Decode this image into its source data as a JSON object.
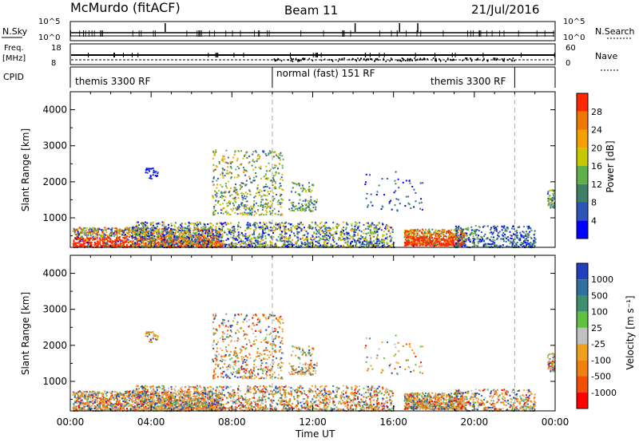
{
  "header": {
    "station": "McMurdo (fitACF)",
    "beam": "Beam 11",
    "date": "21/Jul/2016"
  },
  "noise_panel": {
    "left_label": "N.Sky",
    "right_label": "N.Search",
    "left_ticks": [
      "10^5",
      "10^0"
    ],
    "right_ticks": [
      "10^5",
      "10^0"
    ]
  },
  "freq_panel": {
    "left_label_line1": "Freq.",
    "left_label_line2": "[MHz]",
    "right_label": "Nave",
    "left_ticks": [
      "18",
      "8"
    ],
    "right_ticks": [
      "60",
      "0"
    ]
  },
  "cpid_panel": {
    "label": "CPID",
    "segments": [
      {
        "name": "themis 3300 RF",
        "start_hour": 0,
        "end_hour": 10
      },
      {
        "name": "normal (fast) 151 RF",
        "start_hour": 10,
        "end_hour": 22
      },
      {
        "name": "themis 3300 RF",
        "start_hour": 17.5,
        "end_hour": 22
      }
    ],
    "boundaries_hours": [
      10,
      22
    ]
  },
  "colors": {
    "power": [
      "#0000ff",
      "#2b55b8",
      "#3f7f68",
      "#5fb04a",
      "#c8c800",
      "#f5a000",
      "#f07800",
      "#ff2800"
    ],
    "velocity": [
      "#2040c0",
      "#3070a0",
      "#3c9070",
      "#60c040",
      "#c0c0c0",
      "#f0a020",
      "#f08010",
      "#f05000",
      "#ff0000"
    ]
  },
  "chart_data": [
    {
      "type": "heatmap",
      "xlabel": "",
      "ylabel": "Slant Range [km]",
      "x_range_hours": [
        0,
        24
      ],
      "ylim": [
        180,
        4500
      ],
      "yticks": [
        "1000",
        "2000",
        "3000",
        "4000"
      ],
      "colorbar": {
        "label": "Power [dB]",
        "ticks": [
          "4",
          "8",
          "12",
          "16",
          "20",
          "24",
          "28"
        ],
        "range": [
          0,
          30
        ]
      }
    },
    {
      "type": "heatmap",
      "xlabel": "Time UT",
      "ylabel": "Slant Range [km]",
      "x_range_hours": [
        0,
        24
      ],
      "xticks": [
        "00:00",
        "04:00",
        "08:00",
        "12:00",
        "16:00",
        "20:00",
        "00:00"
      ],
      "ylim": [
        180,
        4500
      ],
      "yticks": [
        "1000",
        "2000",
        "3000",
        "4000"
      ],
      "colorbar": {
        "label": "Velocity [m s⁻¹]",
        "ticks": [
          "1000",
          "500",
          "100",
          "25",
          "-25",
          "-100",
          "-500",
          "-1000"
        ]
      }
    }
  ]
}
